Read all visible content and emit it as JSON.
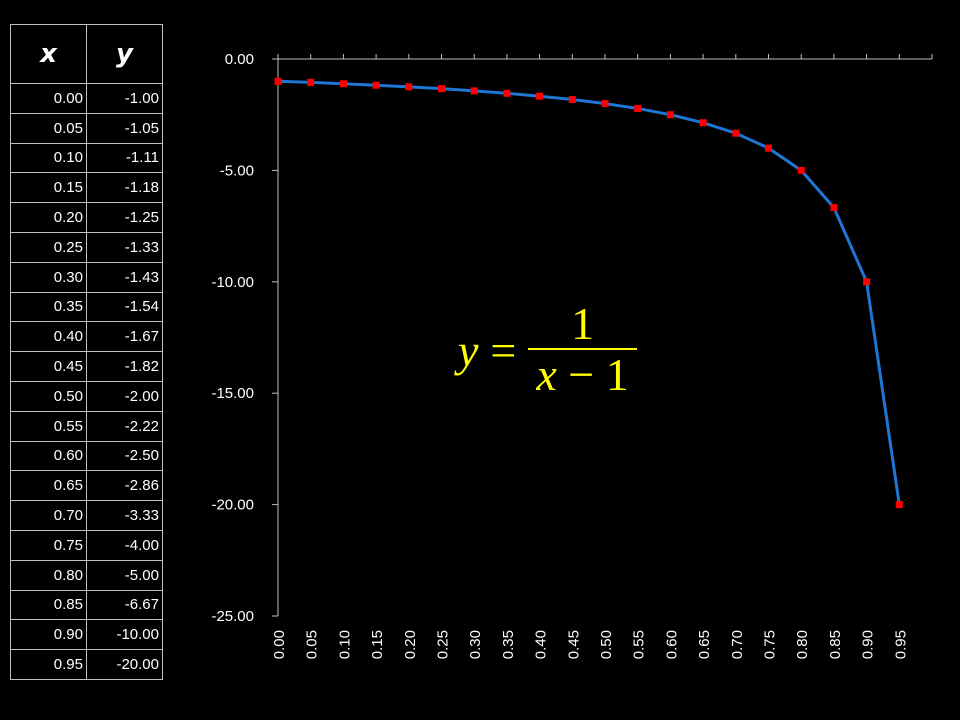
{
  "table": {
    "header_x": "x",
    "header_y": "y",
    "rows": [
      [
        "0.00",
        "-1.00"
      ],
      [
        "0.05",
        "-1.05"
      ],
      [
        "0.10",
        "-1.11"
      ],
      [
        "0.15",
        "-1.18"
      ],
      [
        "0.20",
        "-1.25"
      ],
      [
        "0.25",
        "-1.33"
      ],
      [
        "0.30",
        "-1.43"
      ],
      [
        "0.35",
        "-1.54"
      ],
      [
        "0.40",
        "-1.67"
      ],
      [
        "0.45",
        "-1.82"
      ],
      [
        "0.50",
        "-2.00"
      ],
      [
        "0.55",
        "-2.22"
      ],
      [
        "0.60",
        "-2.50"
      ],
      [
        "0.65",
        "-2.86"
      ],
      [
        "0.70",
        "-3.33"
      ],
      [
        "0.75",
        "-4.00"
      ],
      [
        "0.80",
        "-5.00"
      ],
      [
        "0.85",
        "-6.67"
      ],
      [
        "0.90",
        "-10.00"
      ],
      [
        "0.95",
        "-20.00"
      ]
    ]
  },
  "equation": {
    "lhs": "y",
    "equals": "=",
    "numerator": "1",
    "denominator_var": "x",
    "denominator_rest": " − 1"
  },
  "chart_data": {
    "type": "line",
    "x": [
      "0.00",
      "0.05",
      "0.10",
      "0.15",
      "0.20",
      "0.25",
      "0.30",
      "0.35",
      "0.40",
      "0.45",
      "0.50",
      "0.55",
      "0.60",
      "0.65",
      "0.70",
      "0.75",
      "0.80",
      "0.85",
      "0.90",
      "0.95"
    ],
    "series": [
      {
        "values": [
          -1.0,
          -1.05,
          -1.11,
          -1.18,
          -1.25,
          -1.33,
          -1.43,
          -1.54,
          -1.67,
          -1.82,
          -2.0,
          -2.22,
          -2.5,
          -2.86,
          -3.33,
          -4.0,
          -5.0,
          -6.67,
          -10.0,
          -20.0
        ],
        "line_color": "#1f77d4",
        "marker_color": "#ff0000"
      }
    ],
    "ylim": [
      -25,
      0
    ],
    "yticks": [
      "0.00",
      "-5.00",
      "-10.00",
      "-15.00",
      "-20.00",
      "-25.00"
    ],
    "ytick_values": [
      0,
      -5,
      -10,
      -15,
      -20,
      -25
    ],
    "grid": false,
    "legend": "none",
    "background": "#000000",
    "axis_color": "#bfbfbf"
  }
}
